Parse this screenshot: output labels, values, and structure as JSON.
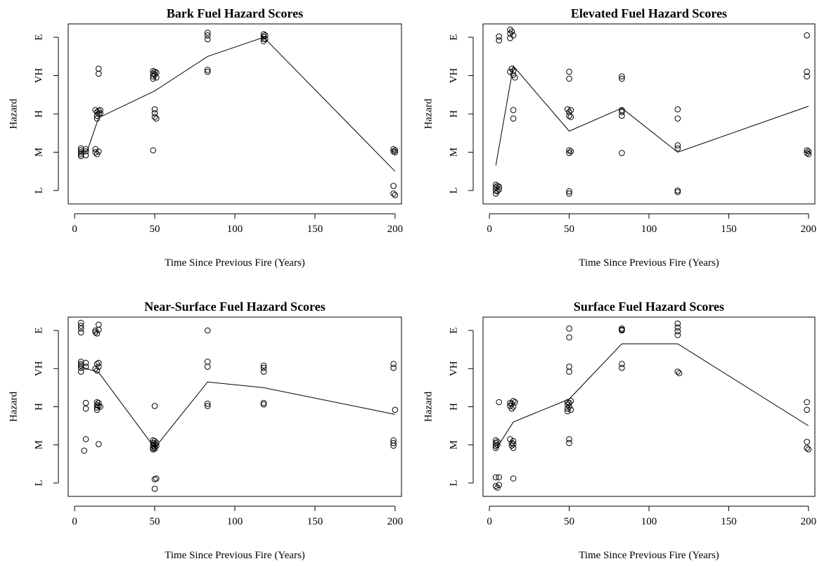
{
  "chart_data": [
    {
      "type": "scatter",
      "title": "Bark Fuel Hazard Scores",
      "xlabel": "Time Since Previous Fire (Years)",
      "ylabel": "Hazard",
      "xlim": [
        -4,
        204
      ],
      "ylim": [
        0.65,
        5.35
      ],
      "xticks": [
        0,
        50,
        100,
        150,
        200
      ],
      "yticks": [
        {
          "value": 1,
          "label": "L"
        },
        {
          "value": 2,
          "label": "M"
        },
        {
          "value": 3,
          "label": "H"
        },
        {
          "value": 4,
          "label": "VH"
        },
        {
          "value": 5,
          "label": "E"
        }
      ],
      "points": [
        [
          4,
          2.1
        ],
        [
          4,
          2.05
        ],
        [
          4,
          2.0
        ],
        [
          4,
          1.95
        ],
        [
          4,
          1.9
        ],
        [
          7,
          2.08
        ],
        [
          7,
          2.02
        ],
        [
          7,
          1.92
        ],
        [
          13,
          2.08
        ],
        [
          13,
          2.0
        ],
        [
          14,
          1.95
        ],
        [
          15,
          2.02
        ],
        [
          13,
          3.1
        ],
        [
          14,
          3.05
        ],
        [
          14,
          2.95
        ],
        [
          14,
          2.88
        ],
        [
          15,
          3.08
        ],
        [
          15,
          3.0
        ],
        [
          16,
          3.1
        ],
        [
          16,
          3.02
        ],
        [
          15,
          4.18
        ],
        [
          15,
          4.05
        ],
        [
          49,
          4.12
        ],
        [
          49,
          4.05
        ],
        [
          49,
          3.98
        ],
        [
          49,
          3.92
        ],
        [
          50,
          4.1
        ],
        [
          50,
          4.02
        ],
        [
          51,
          4.08
        ],
        [
          51,
          3.95
        ],
        [
          50,
          3.12
        ],
        [
          50,
          3.02
        ],
        [
          50,
          2.92
        ],
        [
          51,
          2.88
        ],
        [
          49,
          2.05
        ],
        [
          83,
          5.12
        ],
        [
          83,
          5.05
        ],
        [
          83,
          4.95
        ],
        [
          83,
          4.15
        ],
        [
          83,
          4.1
        ],
        [
          118,
          5.08
        ],
        [
          118,
          5.02
        ],
        [
          118,
          4.96
        ],
        [
          118,
          4.9
        ],
        [
          119,
          5.05
        ],
        [
          119,
          4.95
        ],
        [
          199,
          2.08
        ],
        [
          199,
          2.02
        ],
        [
          200,
          2.05
        ],
        [
          200,
          2.0
        ],
        [
          199,
          1.12
        ],
        [
          199,
          0.92
        ],
        [
          200,
          0.88
        ]
      ],
      "trend": [
        [
          4,
          2.0
        ],
        [
          8,
          2.05
        ],
        [
          15,
          2.9
        ],
        [
          50,
          3.6
        ],
        [
          83,
          4.5
        ],
        [
          118,
          5.0
        ],
        [
          200,
          1.5
        ]
      ]
    },
    {
      "type": "scatter",
      "title": "Elevated Fuel Hazard Scores",
      "xlabel": "Time Since Previous Fire (Years)",
      "ylabel": "Hazard",
      "xlim": [
        -4,
        204
      ],
      "ylim": [
        0.65,
        5.35
      ],
      "xticks": [
        0,
        50,
        100,
        150,
        200
      ],
      "yticks": [
        {
          "value": 1,
          "label": "L"
        },
        {
          "value": 2,
          "label": "M"
        },
        {
          "value": 3,
          "label": "H"
        },
        {
          "value": 4,
          "label": "VH"
        },
        {
          "value": 5,
          "label": "E"
        }
      ],
      "points": [
        [
          4,
          1.15
        ],
        [
          4,
          1.08
        ],
        [
          4,
          1.0
        ],
        [
          4,
          0.92
        ],
        [
          5,
          1.12
        ],
        [
          5,
          0.98
        ],
        [
          6,
          1.1
        ],
        [
          6,
          1.03
        ],
        [
          6,
          5.02
        ],
        [
          6,
          4.92
        ],
        [
          13,
          5.2
        ],
        [
          13,
          5.1
        ],
        [
          13,
          4.98
        ],
        [
          14,
          5.15
        ],
        [
          15,
          5.05
        ],
        [
          13,
          4.1
        ],
        [
          14,
          4.18
        ],
        [
          15,
          4.12
        ],
        [
          15,
          4.02
        ],
        [
          16,
          3.95
        ],
        [
          15,
          3.1
        ],
        [
          15,
          2.88
        ],
        [
          50,
          4.1
        ],
        [
          50,
          3.92
        ],
        [
          49,
          3.12
        ],
        [
          50,
          3.05
        ],
        [
          50,
          2.95
        ],
        [
          51,
          3.1
        ],
        [
          51,
          2.92
        ],
        [
          50,
          2.05
        ],
        [
          50,
          1.98
        ],
        [
          51,
          2.02
        ],
        [
          50,
          0.98
        ],
        [
          50,
          0.92
        ],
        [
          83,
          3.98
        ],
        [
          83,
          3.92
        ],
        [
          83,
          3.1
        ],
        [
          83,
          3.05
        ],
        [
          83,
          2.95
        ],
        [
          83,
          1.98
        ],
        [
          118,
          3.12
        ],
        [
          118,
          2.88
        ],
        [
          118,
          2.18
        ],
        [
          118,
          2.1
        ],
        [
          118,
          1.0
        ],
        [
          118,
          0.96
        ],
        [
          199,
          5.05
        ],
        [
          199,
          4.1
        ],
        [
          199,
          3.98
        ],
        [
          199,
          2.05
        ],
        [
          199,
          1.98
        ],
        [
          200,
          2.02
        ],
        [
          200,
          1.95
        ]
      ],
      "trend": [
        [
          4,
          1.65
        ],
        [
          15,
          4.25
        ],
        [
          50,
          2.55
        ],
        [
          83,
          3.15
        ],
        [
          118,
          2.0
        ],
        [
          200,
          3.2
        ]
      ]
    },
    {
      "type": "scatter",
      "title": "Near-Surface Fuel Hazard Scores",
      "xlabel": "Time Since Previous Fire (Years)",
      "ylabel": "Hazard",
      "xlim": [
        -4,
        204
      ],
      "ylim": [
        0.65,
        5.35
      ],
      "xticks": [
        0,
        50,
        100,
        150,
        200
      ],
      "yticks": [
        {
          "value": 1,
          "label": "L"
        },
        {
          "value": 2,
          "label": "M"
        },
        {
          "value": 3,
          "label": "H"
        },
        {
          "value": 4,
          "label": "VH"
        },
        {
          "value": 5,
          "label": "E"
        }
      ],
      "points": [
        [
          4,
          5.2
        ],
        [
          4,
          5.12
        ],
        [
          4,
          5.05
        ],
        [
          4,
          4.95
        ],
        [
          13,
          5.0
        ],
        [
          13,
          4.95
        ],
        [
          14,
          4.92
        ],
        [
          15,
          5.02
        ],
        [
          15,
          5.15
        ],
        [
          4,
          4.18
        ],
        [
          4,
          4.12
        ],
        [
          4,
          4.08
        ],
        [
          4,
          4.02
        ],
        [
          4,
          3.92
        ],
        [
          7,
          4.15
        ],
        [
          7,
          4.05
        ],
        [
          13,
          4.0
        ],
        [
          14,
          3.95
        ],
        [
          14,
          4.12
        ],
        [
          15,
          4.05
        ],
        [
          15,
          4.15
        ],
        [
          7,
          3.1
        ],
        [
          7,
          2.95
        ],
        [
          14,
          3.12
        ],
        [
          14,
          3.05
        ],
        [
          14,
          2.98
        ],
        [
          14,
          2.92
        ],
        [
          15,
          3.02
        ],
        [
          15,
          3.1
        ],
        [
          16,
          3.0
        ],
        [
          7,
          2.15
        ],
        [
          6,
          1.85
        ],
        [
          15,
          2.02
        ],
        [
          50,
          3.02
        ],
        [
          49,
          2.12
        ],
        [
          49,
          2.05
        ],
        [
          49,
          1.98
        ],
        [
          49,
          1.92
        ],
        [
          49,
          1.88
        ],
        [
          50,
          2.1
        ],
        [
          50,
          2.02
        ],
        [
          50,
          1.95
        ],
        [
          50,
          1.9
        ],
        [
          51,
          2.05
        ],
        [
          51,
          1.98
        ],
        [
          51,
          1.12
        ],
        [
          50,
          1.1
        ],
        [
          50,
          0.85
        ],
        [
          83,
          5.0
        ],
        [
          83,
          4.18
        ],
        [
          83,
          4.05
        ],
        [
          83,
          3.08
        ],
        [
          83,
          3.02
        ],
        [
          118,
          4.08
        ],
        [
          118,
          4.02
        ],
        [
          118,
          3.92
        ],
        [
          118,
          3.1
        ],
        [
          118,
          3.06
        ],
        [
          199,
          4.12
        ],
        [
          199,
          4.02
        ],
        [
          200,
          2.92
        ],
        [
          199,
          2.12
        ],
        [
          199,
          2.05
        ],
        [
          199,
          1.98
        ]
      ],
      "trend": [
        [
          4,
          4.05
        ],
        [
          15,
          3.9
        ],
        [
          50,
          1.92
        ],
        [
          83,
          3.65
        ],
        [
          118,
          3.5
        ],
        [
          200,
          2.8
        ]
      ]
    },
    {
      "type": "scatter",
      "title": "Surface Fuel Hazard Scores",
      "xlabel": "Time Since Previous Fire (Years)",
      "ylabel": "Hazard",
      "xlim": [
        -4,
        204
      ],
      "ylim": [
        0.65,
        5.35
      ],
      "xticks": [
        0,
        50,
        100,
        150,
        200
      ],
      "yticks": [
        {
          "value": 1,
          "label": "L"
        },
        {
          "value": 2,
          "label": "M"
        },
        {
          "value": 3,
          "label": "H"
        },
        {
          "value": 4,
          "label": "VH"
        },
        {
          "value": 5,
          "label": "E"
        }
      ],
      "points": [
        [
          4,
          2.12
        ],
        [
          4,
          2.05
        ],
        [
          4,
          1.98
        ],
        [
          4,
          1.92
        ],
        [
          5,
          2.08
        ],
        [
          5,
          2.0
        ],
        [
          4,
          1.15
        ],
        [
          4,
          0.92
        ],
        [
          5,
          0.88
        ],
        [
          6,
          1.15
        ],
        [
          6,
          0.95
        ],
        [
          6,
          3.12
        ],
        [
          13,
          3.1
        ],
        [
          13,
          3.02
        ],
        [
          14,
          2.95
        ],
        [
          14,
          3.08
        ],
        [
          15,
          3.15
        ],
        [
          15,
          3.0
        ],
        [
          16,
          3.12
        ],
        [
          13,
          2.15
        ],
        [
          14,
          2.05
        ],
        [
          14,
          1.98
        ],
        [
          15,
          2.1
        ],
        [
          15,
          2.02
        ],
        [
          15,
          1.92
        ],
        [
          15,
          1.12
        ],
        [
          50,
          5.05
        ],
        [
          50,
          4.82
        ],
        [
          50,
          4.05
        ],
        [
          50,
          3.92
        ],
        [
          49,
          3.12
        ],
        [
          49,
          3.05
        ],
        [
          49,
          2.95
        ],
        [
          49,
          2.88
        ],
        [
          50,
          3.1
        ],
        [
          50,
          3.0
        ],
        [
          51,
          3.15
        ],
        [
          51,
          2.92
        ],
        [
          50,
          2.15
        ],
        [
          50,
          2.05
        ],
        [
          83,
          5.05
        ],
        [
          83,
          5.02
        ],
        [
          83,
          5.0
        ],
        [
          83,
          4.12
        ],
        [
          83,
          4.02
        ],
        [
          118,
          5.18
        ],
        [
          118,
          5.08
        ],
        [
          118,
          4.98
        ],
        [
          118,
          4.88
        ],
        [
          118,
          3.92
        ],
        [
          119,
          3.88
        ],
        [
          199,
          3.12
        ],
        [
          199,
          2.92
        ],
        [
          199,
          2.08
        ],
        [
          199,
          1.92
        ],
        [
          200,
          1.88
        ]
      ],
      "trend": [
        [
          4,
          1.88
        ],
        [
          15,
          2.6
        ],
        [
          50,
          3.2
        ],
        [
          83,
          4.65
        ],
        [
          118,
          4.65
        ],
        [
          200,
          2.5
        ]
      ]
    }
  ]
}
